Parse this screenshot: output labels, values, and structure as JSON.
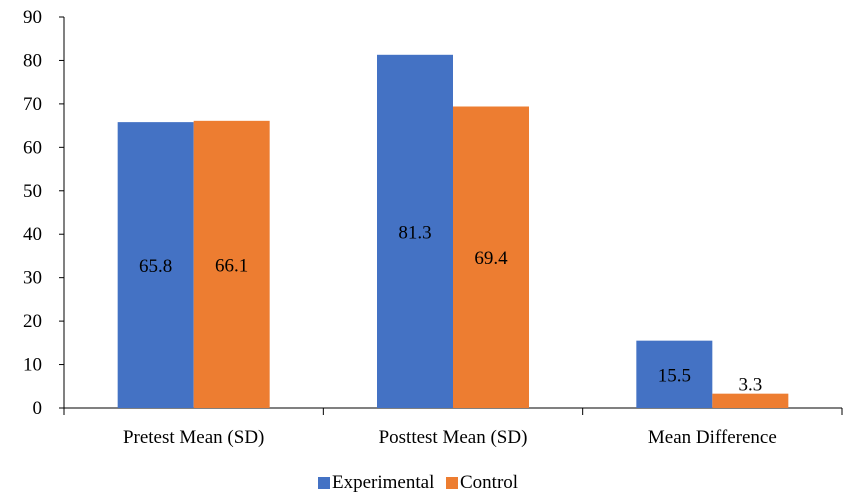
{
  "chart_data": {
    "type": "bar",
    "categories": [
      "Pretest Mean (SD)",
      "Posttest Mean (SD)",
      "Mean Difference"
    ],
    "series": [
      {
        "name": "Experimental",
        "values": [
          65.8,
          81.3,
          15.5
        ],
        "labels": [
          "65.8",
          "81.3",
          "15.5"
        ],
        "color": "#4472C4"
      },
      {
        "name": "Control",
        "values": [
          66.1,
          69.4,
          3.3
        ],
        "labels": [
          "66.1",
          "69.4",
          "3.3"
        ],
        "color": "#ED7D31"
      }
    ],
    "ylim": [
      0,
      90
    ],
    "yticks": [
      "0",
      "10",
      "20",
      "30",
      "40",
      "50",
      "60",
      "70",
      "80",
      "90"
    ],
    "grid": false,
    "legend_position": "bottom"
  }
}
